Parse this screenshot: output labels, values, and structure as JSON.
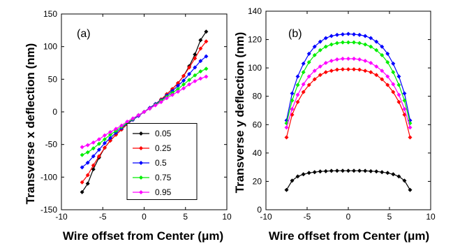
{
  "chart_data": [
    {
      "type": "line",
      "panel_label": "(a)",
      "xlabel": "Wire offset from Center (μm)",
      "ylabel": "Transverse x deflection (nm)",
      "xlim": [
        -10,
        10
      ],
      "ylim": [
        -150,
        150
      ],
      "xticks": [
        -10,
        -5,
        0,
        5,
        10
      ],
      "yticks": [
        -150,
        -100,
        -50,
        0,
        50,
        100,
        150
      ],
      "grid": false,
      "legend_position": "bottom-right",
      "x": [
        -7.5,
        -6.82,
        -6.14,
        -5.45,
        -4.77,
        -4.09,
        -3.41,
        -2.73,
        -2.05,
        -1.36,
        -0.68,
        0,
        0.68,
        1.36,
        2.05,
        2.73,
        3.41,
        4.09,
        4.77,
        5.45,
        6.14,
        6.82,
        7.5
      ],
      "series": [
        {
          "name": "0.05",
          "color": "#000000",
          "values": [
            -123,
            -110,
            -88,
            -70,
            -55,
            -44,
            -35,
            -27,
            -19,
            -12,
            -6,
            0,
            6,
            12,
            19,
            27,
            35,
            44,
            55,
            70,
            88,
            110,
            123
          ]
        },
        {
          "name": "0.25",
          "color": "#ff0000",
          "values": [
            -108,
            -97,
            -82,
            -68,
            -55,
            -44,
            -35,
            -27,
            -19,
            -12,
            -6,
            0,
            6,
            12,
            19,
            27,
            35,
            44,
            55,
            68,
            82,
            97,
            108
          ]
        },
        {
          "name": "0.5",
          "color": "#0000ff",
          "values": [
            -85,
            -78,
            -68,
            -58,
            -48,
            -40,
            -32,
            -25,
            -18,
            -12,
            -6,
            0,
            6,
            12,
            18,
            25,
            32,
            40,
            48,
            58,
            68,
            78,
            85
          ]
        },
        {
          "name": "0.75",
          "color": "#00ee00",
          "values": [
            -66,
            -62,
            -56,
            -49,
            -42,
            -35,
            -29,
            -23,
            -17,
            -11,
            -5,
            0,
            5,
            11,
            17,
            23,
            29,
            35,
            42,
            49,
            56,
            62,
            66
          ]
        },
        {
          "name": "0.95",
          "color": "#ff00ff",
          "values": [
            -54,
            -51,
            -47,
            -42,
            -36,
            -31,
            -26,
            -21,
            -15,
            -10,
            -5,
            0,
            5,
            10,
            15,
            21,
            26,
            31,
            36,
            42,
            47,
            51,
            54
          ]
        }
      ]
    },
    {
      "type": "line",
      "panel_label": "(b)",
      "xlabel": "Wire offset from Center (μm)",
      "ylabel": "Transverse y deflection (nm)",
      "xlim": [
        -10,
        10
      ],
      "ylim": [
        0,
        140
      ],
      "xticks": [
        -10,
        -5,
        0,
        5,
        10
      ],
      "yticks": [
        0,
        20,
        40,
        60,
        80,
        100,
        120,
        140
      ],
      "grid": false,
      "x": [
        -7.5,
        -6.82,
        -6.14,
        -5.45,
        -4.77,
        -4.09,
        -3.41,
        -2.73,
        -2.05,
        -1.36,
        -0.68,
        0,
        0.68,
        1.36,
        2.05,
        2.73,
        3.41,
        4.09,
        4.77,
        5.45,
        6.14,
        6.82,
        7.5
      ],
      "series": [
        {
          "name": "0.05",
          "color": "#000000",
          "values": [
            14,
            20.5,
            23.5,
            25,
            26,
            26.5,
            27,
            27.2,
            27.4,
            27.5,
            27.5,
            27.5,
            27.5,
            27.5,
            27.4,
            27.2,
            27,
            26.5,
            26,
            25,
            23.5,
            20.5,
            14
          ]
        },
        {
          "name": "0.25",
          "color": "#ff0000",
          "values": [
            51,
            67,
            76,
            83,
            88,
            92,
            95,
            97,
            98,
            98.8,
            99,
            99,
            99,
            98.8,
            98,
            97,
            95,
            92,
            88,
            83,
            76,
            67,
            51
          ]
        },
        {
          "name": "0.5",
          "color": "#0000ff",
          "values": [
            63,
            82,
            94,
            103,
            110,
            115,
            118.5,
            121,
            122.5,
            123.3,
            123.7,
            124,
            123.7,
            123.3,
            122.5,
            121,
            118.5,
            115,
            110,
            103,
            94,
            82,
            63
          ]
        },
        {
          "name": "0.75",
          "color": "#00ee00",
          "values": [
            61,
            77,
            88,
            97,
            104,
            109,
            112.5,
            115,
            116.5,
            117.5,
            118,
            118,
            118,
            117.5,
            116.5,
            115,
            112.5,
            109,
            104,
            97,
            88,
            77,
            61
          ]
        },
        {
          "name": "0.95",
          "color": "#ff00ff",
          "values": [
            58,
            71,
            81,
            88.5,
            94,
            98,
            101,
            103.5,
            105,
            106,
            106.5,
            106.5,
            106.5,
            106,
            105,
            103.5,
            101,
            98,
            94,
            88.5,
            81,
            71,
            58
          ]
        }
      ]
    }
  ]
}
